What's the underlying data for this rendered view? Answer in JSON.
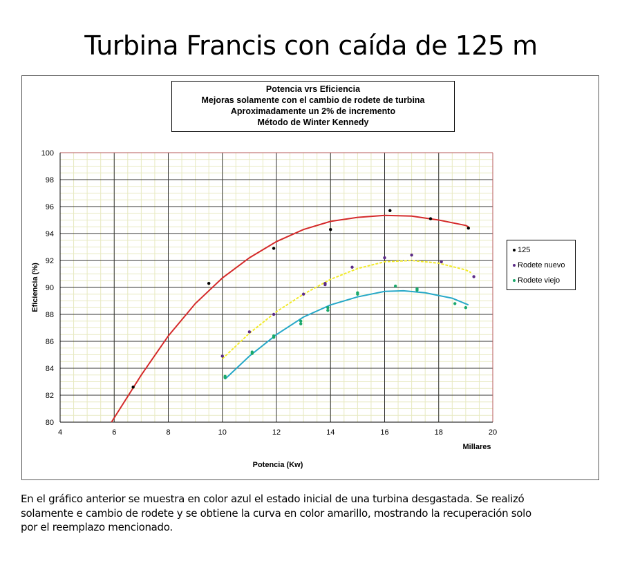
{
  "page": {
    "title": "Turbina Francis con caída de 125 m",
    "caption_lines": [
      "En el gráfico anterior se muestra en color azul el estado inicial de una turbina desgastada.  Se realizó",
      "solamente e cambio de rodete y se obtiene la curva en color amarillo, mostrando la recuperación solo",
      "por el reemplazo mencionado."
    ]
  },
  "chart_data": {
    "type": "scatter",
    "title_lines": [
      "Potencia vrs Eficiencia",
      "Mejoras solamente  con el cambio  de rodete de turbina",
      "Aproximadamente  un 2% de incremento",
      "Método de Winter Kennedy"
    ],
    "xlabel": "Potencia (Kw)",
    "xunit_label": "Millares",
    "ylabel": "Eficiencia (%)",
    "xlim": [
      4,
      20
    ],
    "ylim": [
      80,
      100
    ],
    "xticks": [
      4,
      6,
      8,
      10,
      12,
      14,
      16,
      18,
      20
    ],
    "yticks": [
      80,
      82,
      84,
      86,
      88,
      90,
      92,
      94,
      96,
      98,
      100
    ],
    "grid": true,
    "legend_position": "right",
    "series": [
      {
        "name": "125",
        "color": "#000000",
        "trend_color": "#d42a2a",
        "points": [
          [
            6.7,
            82.6
          ],
          [
            9.5,
            90.3
          ],
          [
            11.9,
            92.9
          ],
          [
            14.0,
            94.3
          ],
          [
            16.2,
            95.7
          ],
          [
            17.7,
            95.1
          ],
          [
            19.1,
            94.4
          ]
        ],
        "trend": [
          [
            5.9,
            80.0
          ],
          [
            7.0,
            83.5
          ],
          [
            8.0,
            86.4
          ],
          [
            9.0,
            88.8
          ],
          [
            10.0,
            90.7
          ],
          [
            11.0,
            92.2
          ],
          [
            12.0,
            93.4
          ],
          [
            13.0,
            94.3
          ],
          [
            14.0,
            94.9
          ],
          [
            15.0,
            95.2
          ],
          [
            16.0,
            95.35
          ],
          [
            17.0,
            95.3
          ],
          [
            18.0,
            95.0
          ],
          [
            19.0,
            94.6
          ],
          [
            19.1,
            94.5
          ]
        ]
      },
      {
        "name": "Rodete nuevo",
        "color": "#5b2a86",
        "trend_color": "#f2ea2a",
        "points": [
          [
            10.0,
            84.9
          ],
          [
            11.0,
            86.7
          ],
          [
            11.9,
            88.0
          ],
          [
            13.0,
            89.5
          ],
          [
            13.8,
            90.3
          ],
          [
            13.8,
            90.2
          ],
          [
            14.8,
            91.5
          ],
          [
            16.0,
            92.2
          ],
          [
            17.0,
            92.4
          ],
          [
            18.1,
            91.9
          ],
          [
            19.3,
            90.8
          ]
        ],
        "trend": [
          [
            10.0,
            84.7
          ],
          [
            11.0,
            86.6
          ],
          [
            12.0,
            88.2
          ],
          [
            13.0,
            89.5
          ],
          [
            14.0,
            90.6
          ],
          [
            15.0,
            91.4
          ],
          [
            16.0,
            91.9
          ],
          [
            17.0,
            92.0
          ],
          [
            18.0,
            91.8
          ],
          [
            19.0,
            91.3
          ],
          [
            19.2,
            91.1
          ]
        ]
      },
      {
        "name": "Rodete viejo",
        "color": "#1aa86b",
        "trend_color": "#26a8c8",
        "points": [
          [
            10.1,
            83.4
          ],
          [
            10.1,
            83.3
          ],
          [
            11.1,
            85.1
          ],
          [
            11.1,
            85.2
          ],
          [
            11.9,
            86.3
          ],
          [
            11.9,
            86.4
          ],
          [
            12.9,
            87.3
          ],
          [
            12.9,
            87.5
          ],
          [
            13.9,
            88.3
          ],
          [
            13.9,
            88.5
          ],
          [
            15.0,
            89.6
          ],
          [
            15.0,
            89.5
          ],
          [
            16.4,
            90.1
          ],
          [
            17.2,
            89.8
          ],
          [
            17.2,
            89.9
          ],
          [
            18.6,
            88.8
          ],
          [
            19.0,
            88.5
          ]
        ],
        "trend": [
          [
            10.1,
            83.2
          ],
          [
            11.0,
            84.9
          ],
          [
            12.0,
            86.5
          ],
          [
            13.0,
            87.8
          ],
          [
            14.0,
            88.7
          ],
          [
            15.0,
            89.3
          ],
          [
            16.0,
            89.7
          ],
          [
            16.7,
            89.75
          ],
          [
            17.5,
            89.6
          ],
          [
            18.5,
            89.2
          ],
          [
            19.1,
            88.7
          ]
        ]
      }
    ]
  }
}
